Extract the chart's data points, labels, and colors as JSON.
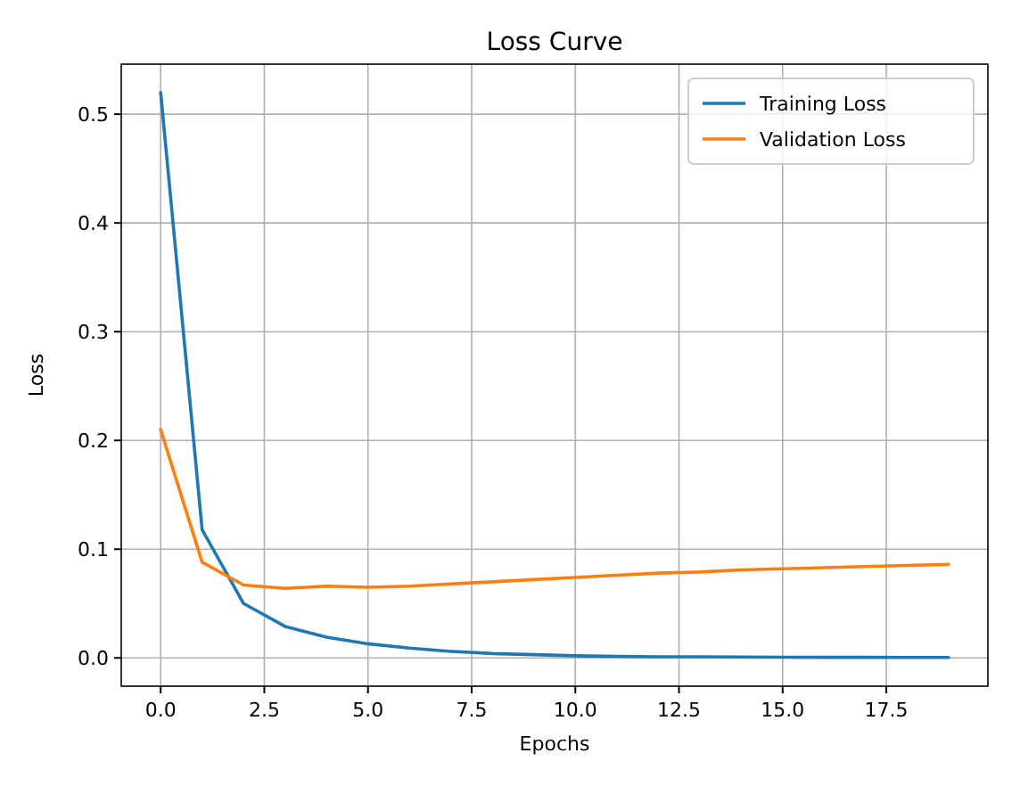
{
  "chart_data": {
    "type": "line",
    "title": "Loss Curve",
    "xlabel": "Epochs",
    "ylabel": "Loss",
    "x": [
      0,
      1,
      2,
      3,
      4,
      5,
      6,
      7,
      8,
      9,
      10,
      11,
      12,
      13,
      14,
      15,
      16,
      17,
      18,
      19
    ],
    "series": [
      {
        "name": "Training Loss",
        "color": "#1f77b4",
        "values": [
          0.52,
          0.118,
          0.05,
          0.029,
          0.019,
          0.013,
          0.009,
          0.006,
          0.004,
          0.003,
          0.002,
          0.0015,
          0.001,
          0.001,
          0.0008,
          0.0006,
          0.0005,
          0.0005,
          0.0004,
          0.0004
        ]
      },
      {
        "name": "Validation Loss",
        "color": "#ff7f0e",
        "values": [
          0.21,
          0.088,
          0.067,
          0.064,
          0.066,
          0.065,
          0.066,
          0.068,
          0.07,
          0.072,
          0.074,
          0.076,
          0.078,
          0.079,
          0.081,
          0.082,
          0.083,
          0.084,
          0.085,
          0.086
        ]
      }
    ],
    "xlim": [
      -0.95,
      19.95
    ],
    "xticks": [
      {
        "value": 0,
        "label": "0.0"
      },
      2.5,
      {
        "value": 5,
        "label": "5.0"
      },
      7.5,
      {
        "value": 10,
        "label": "10.0"
      },
      12.5,
      {
        "value": 15,
        "label": "15.0"
      },
      17.5
    ],
    "ylim": [
      -0.026,
      0.546
    ],
    "yticks": [
      {
        "value": 0,
        "label": "0.0"
      },
      0.1,
      0.2,
      0.3,
      0.4,
      0.5
    ],
    "grid": true,
    "legend": "top right",
    "marker": "none",
    "line_style": "solid"
  }
}
